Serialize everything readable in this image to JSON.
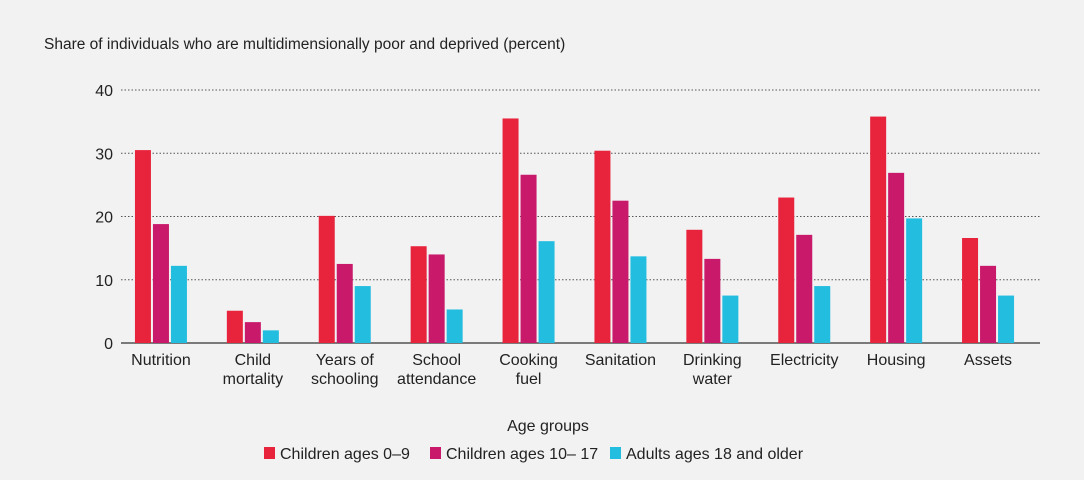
{
  "chart_data": {
    "type": "bar",
    "title": "Share of individuals who are multidimensionally poor and deprived (percent)",
    "xlabel": "Age groups",
    "ylabel": "",
    "ylim": [
      0,
      40
    ],
    "yticks": [
      0,
      10,
      20,
      30,
      40
    ],
    "grid": "horizontal-dotted",
    "legend_position": "bottom-center",
    "categories": [
      "Nutrition",
      "Child mortality",
      "Years of schooling",
      "School attendance",
      "Cooking fuel",
      "Sanitation",
      "Drinking water",
      "Electricity",
      "Housing",
      "Assets"
    ],
    "category_lines": [
      [
        "Nutrition"
      ],
      [
        "Child",
        "mortality"
      ],
      [
        "Years of",
        "schooling"
      ],
      [
        "School",
        "attendance"
      ],
      [
        "Cooking",
        "fuel"
      ],
      [
        "Sanitation"
      ],
      [
        "Drinking",
        "water"
      ],
      [
        "Electricity"
      ],
      [
        "Housing"
      ],
      [
        "Assets"
      ]
    ],
    "series": [
      {
        "name": "Children ages 0–9",
        "color": "#e8243c",
        "values": [
          30.5,
          5.1,
          20.1,
          15.3,
          35.5,
          30.4,
          17.9,
          23.0,
          35.8,
          16.6
        ]
      },
      {
        "name": "Children ages 10– 17",
        "color": "#c8196a",
        "values": [
          18.8,
          3.3,
          12.5,
          14.0,
          26.6,
          22.5,
          13.3,
          17.1,
          26.9,
          12.2
        ]
      },
      {
        "name": "Adults ages 18 and older",
        "color": "#23bde0",
        "values": [
          12.2,
          2.0,
          9.0,
          5.3,
          16.1,
          13.7,
          7.5,
          9.0,
          19.7,
          7.5
        ]
      }
    ]
  }
}
